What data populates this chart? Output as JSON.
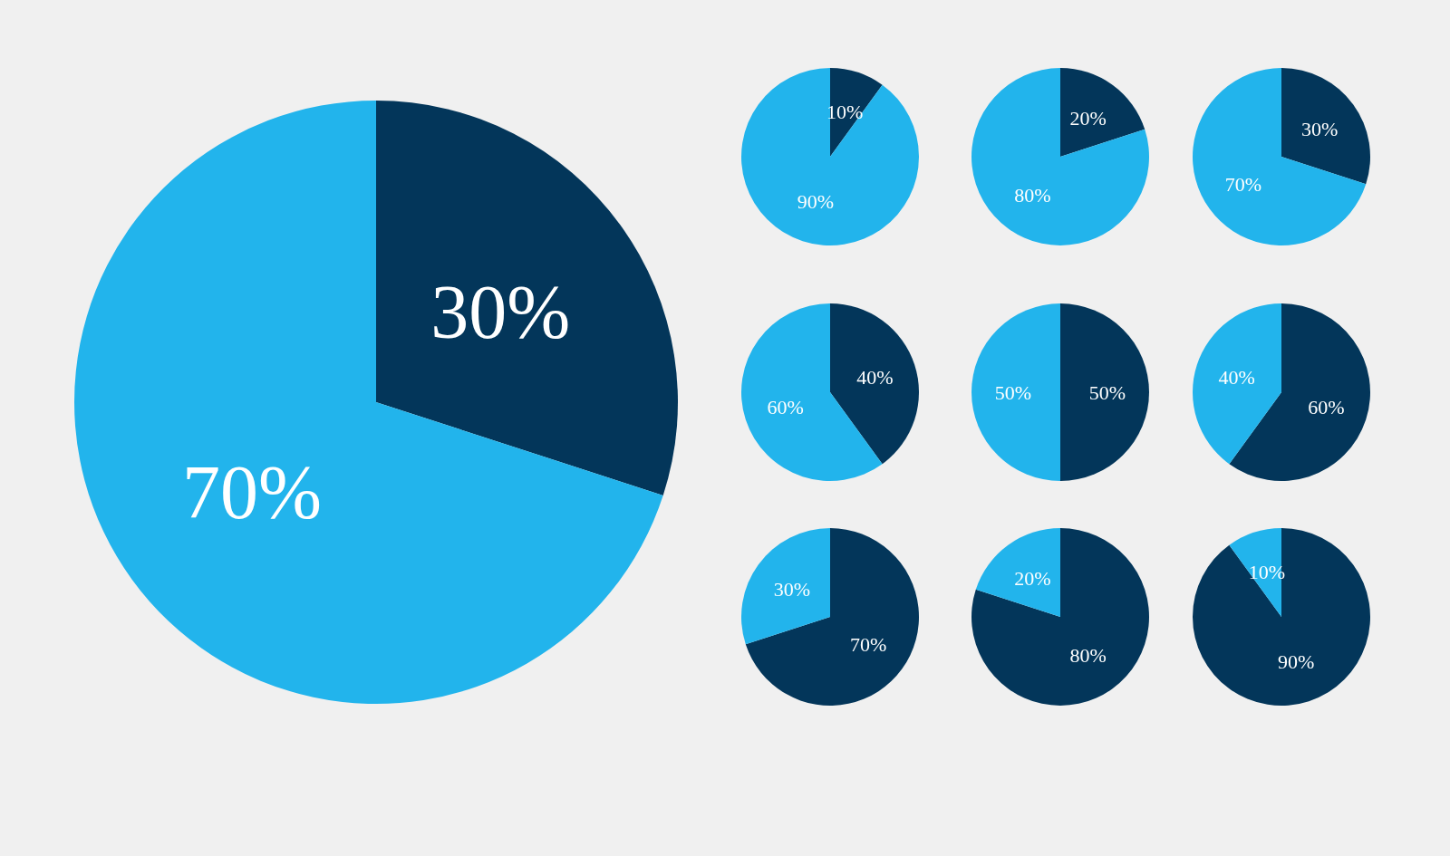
{
  "chart_data": [
    {
      "type": "pie",
      "categories": [
        null,
        null
      ],
      "values": [
        30,
        70
      ],
      "colors": [
        "#03365a",
        "#22b4ec"
      ],
      "value_labels": [
        "30%",
        "70%"
      ]
    },
    {
      "type": "pie",
      "categories": [
        null,
        null
      ],
      "values": [
        10,
        90
      ],
      "colors": [
        "#03365a",
        "#22b4ec"
      ],
      "value_labels": [
        "10%",
        "90%"
      ]
    },
    {
      "type": "pie",
      "categories": [
        null,
        null
      ],
      "values": [
        20,
        80
      ],
      "colors": [
        "#03365a",
        "#22b4ec"
      ],
      "value_labels": [
        "20%",
        "80%"
      ]
    },
    {
      "type": "pie",
      "categories": [
        null,
        null
      ],
      "values": [
        30,
        70
      ],
      "colors": [
        "#03365a",
        "#22b4ec"
      ],
      "value_labels": [
        "30%",
        "70%"
      ]
    },
    {
      "type": "pie",
      "categories": [
        null,
        null
      ],
      "values": [
        40,
        60
      ],
      "colors": [
        "#03365a",
        "#22b4ec"
      ],
      "value_labels": [
        "40%",
        "60%"
      ]
    },
    {
      "type": "pie",
      "categories": [
        null,
        null
      ],
      "values": [
        50,
        50
      ],
      "colors": [
        "#03365a",
        "#22b4ec"
      ],
      "value_labels": [
        "50%",
        "50%"
      ]
    },
    {
      "type": "pie",
      "categories": [
        null,
        null
      ],
      "values": [
        60,
        40
      ],
      "colors": [
        "#03365a",
        "#22b4ec"
      ],
      "value_labels": [
        "60%",
        "40%"
      ]
    },
    {
      "type": "pie",
      "categories": [
        null,
        null
      ],
      "values": [
        70,
        30
      ],
      "colors": [
        "#03365a",
        "#22b4ec"
      ],
      "value_labels": [
        "70%",
        "30%"
      ]
    },
    {
      "type": "pie",
      "categories": [
        null,
        null
      ],
      "values": [
        80,
        20
      ],
      "colors": [
        "#03365a",
        "#22b4ec"
      ],
      "value_labels": [
        "80%",
        "20%"
      ]
    },
    {
      "type": "pie",
      "categories": [
        null,
        null
      ],
      "values": [
        90,
        10
      ],
      "colors": [
        "#03365a",
        "#22b4ec"
      ],
      "value_labels": [
        "90%",
        "10%"
      ]
    }
  ]
}
